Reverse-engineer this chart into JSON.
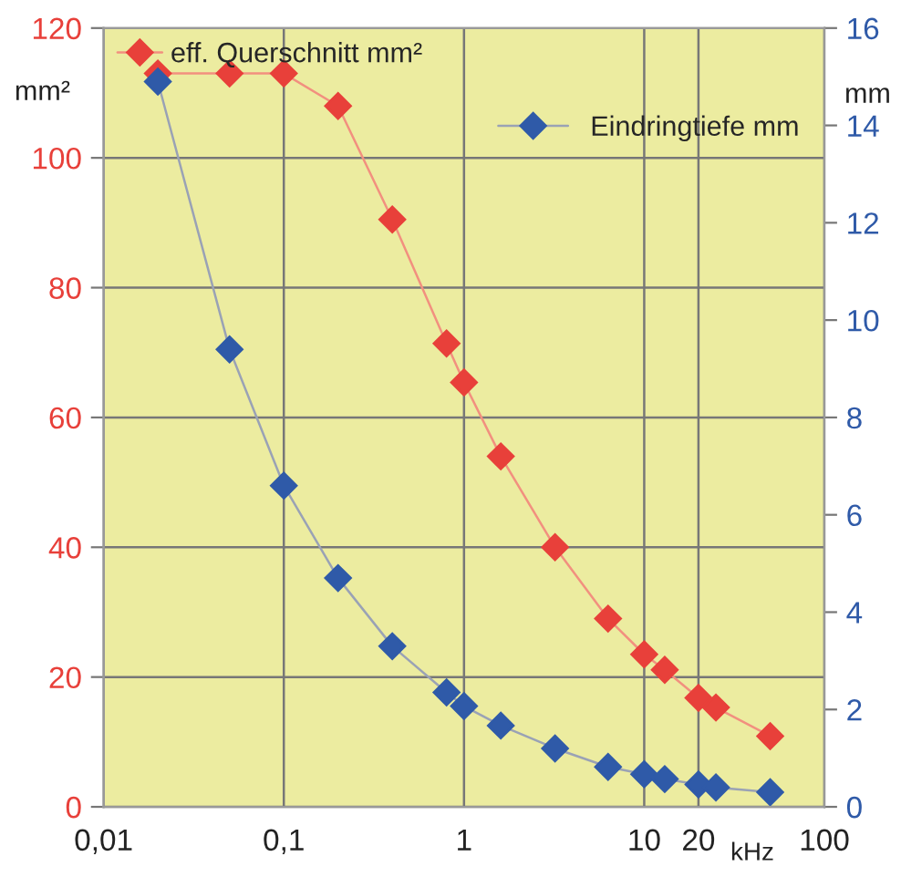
{
  "chart_data": {
    "type": "line",
    "xlabel": "kHz",
    "ylabel": "mm²",
    "y2label": "mm",
    "x": [
      0.02,
      0.05,
      0.1,
      0.2,
      0.4,
      0.8,
      1,
      1.6,
      3.2,
      6.3,
      10,
      13,
      20,
      25,
      50
    ],
    "series": [
      {
        "name": "eff. Querschnitt mm²",
        "color": "#e8403a",
        "values": [
          113,
          113,
          113,
          108,
          90.5,
          71.4,
          65.4,
          54,
          40,
          29,
          23.5,
          21.1,
          16.8,
          15.3,
          10.9
        ]
      },
      {
        "name": "Eindringtiefe mm",
        "color": "#2f5aa8",
        "axis": "y2",
        "values": [
          14.9,
          9.4,
          6.6,
          4.7,
          3.3,
          2.35,
          2.07,
          1.67,
          1.2,
          0.82,
          0.67,
          0.57,
          0.46,
          0.4,
          0.3
        ]
      }
    ],
    "log": "x",
    "xlim": [
      0.01,
      100
    ],
    "xticks": [
      {
        "value": 0.01,
        "label": "0,01"
      },
      {
        "value": 0.1,
        "label": "0,1"
      },
      1,
      10,
      20,
      100
    ],
    "ylim": [
      0,
      120
    ],
    "yticks": [
      0,
      20,
      40,
      60,
      80,
      100,
      120
    ],
    "y2lim": [
      0,
      16
    ],
    "y2ticks": [
      0,
      2,
      4,
      6,
      8,
      10,
      12,
      14,
      16
    ],
    "grid": true,
    "legend": "top",
    "marker": "diamond",
    "line_style": "solid"
  }
}
